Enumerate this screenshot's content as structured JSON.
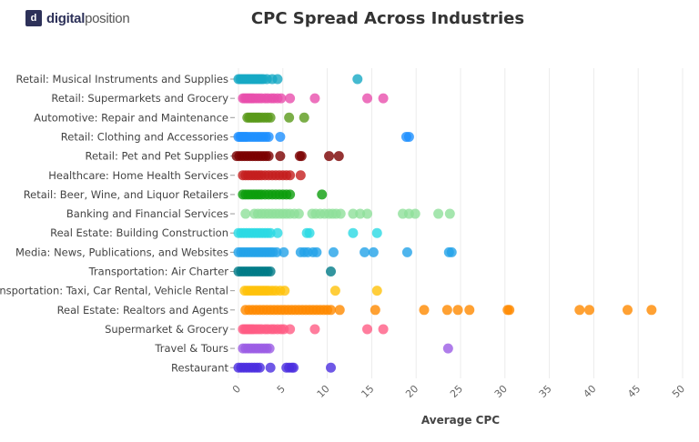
{
  "logo": {
    "brand_bold": "digital",
    "brand_light": "position"
  },
  "chart_data": {
    "type": "scatter",
    "title": "CPC Spread Across Industries",
    "xlabel": "Average CPC",
    "ylabel": "",
    "xlim": [
      0,
      50
    ],
    "xticks": [
      0,
      5,
      10,
      15,
      20,
      25,
      30,
      35,
      40,
      45,
      50
    ],
    "grid": "vertical",
    "legend": "none",
    "series": [
      {
        "name": "Retail: Musical Instruments and Supplies",
        "color": "#17a9c4",
        "values": [
          0,
          0.2,
          0.4,
          0.6,
          0.8,
          1,
          1.2,
          1.4,
          1.6,
          1.8,
          2,
          2.2,
          2.4,
          2.6,
          2.8,
          3.2,
          3.8,
          4.4,
          13.4
        ]
      },
      {
        "name": "Retail: Supermarkets and Grocery",
        "color": "#e84fad",
        "values": [
          0.5,
          0.7,
          0.9,
          1.1,
          1.3,
          1.5,
          1.7,
          2,
          2.3,
          2.6,
          3,
          3.3,
          3.7,
          4,
          4.4,
          4.8,
          5.8,
          8.6,
          14.5,
          16.3
        ]
      },
      {
        "name": "Automotive: Repair and Maintenance",
        "color": "#5a9a1a",
        "values": [
          1,
          1.2,
          1.4,
          1.6,
          1.8,
          2,
          2.2,
          2.4,
          2.7,
          3,
          3.3,
          3.6,
          5.7,
          7.4
        ]
      },
      {
        "name": "Retail: Clothing and Accessories",
        "color": "#1e90ff",
        "values": [
          0,
          0.2,
          0.4,
          0.6,
          0.8,
          1,
          1.3,
          1.6,
          1.9,
          2.2,
          2.5,
          2.8,
          3.1,
          3.4,
          4.7,
          18.9,
          19.2
        ]
      },
      {
        "name": "Retail: Pet and Pet Supplies",
        "color": "#7a0000",
        "values": [
          -0.2,
          0.1,
          0.4,
          0.7,
          1,
          1.3,
          1.6,
          1.9,
          2.2,
          2.5,
          2.8,
          3.1,
          3.4,
          4.7,
          6.9,
          7.1,
          10.2,
          11.3
        ]
      },
      {
        "name": "Healthcare: Home Health Services",
        "color": "#c41e1e",
        "values": [
          0.5,
          0.8,
          1.1,
          1.4,
          1.7,
          2,
          2.3,
          2.6,
          3,
          3.4,
          3.8,
          4.2,
          4.6,
          5,
          5.4,
          5.8,
          7
        ]
      },
      {
        "name": "Retail: Beer, Wine, and Liquor Retailers",
        "color": "#0d9e0d",
        "values": [
          0.5,
          0.8,
          1.1,
          1.4,
          1.7,
          2,
          2.3,
          2.6,
          3,
          3.4,
          3.8,
          4.2,
          4.6,
          5,
          5.4,
          5.8,
          9.4
        ]
      },
      {
        "name": "Banking and Financial Services",
        "color": "#8ee09a",
        "values": [
          0.8,
          1.8,
          2.2,
          2.6,
          3,
          3.4,
          3.8,
          4.2,
          4.6,
          5,
          5.4,
          5.8,
          6.3,
          6.8,
          8.3,
          8.7,
          9.2,
          9.7,
          10.2,
          10.6,
          11,
          11.5,
          12.9,
          13.7,
          14.5,
          18.5,
          19.2,
          19.9,
          22.5,
          23.8
        ]
      },
      {
        "name": "Real Estate: Building Construction",
        "color": "#2bd9e3",
        "values": [
          0,
          0.3,
          0.6,
          0.9,
          1.2,
          1.5,
          1.8,
          2.1,
          2.4,
          2.7,
          3,
          3.3,
          3.6,
          4.4,
          7.7,
          8,
          12.9,
          15.6
        ]
      },
      {
        "name": "Media: News, Publications, and Websites",
        "color": "#23a2e8",
        "values": [
          0,
          0.3,
          0.6,
          0.9,
          1.2,
          1.5,
          1.8,
          2.1,
          2.4,
          2.7,
          3,
          3.3,
          3.6,
          3.9,
          4.3,
          5.1,
          7,
          7.4,
          7.8,
          8.4,
          8.8,
          10.7,
          14.2,
          15.2,
          19,
          23.7,
          24
        ]
      },
      {
        "name": "Transportation: Air Charter",
        "color": "#007a87",
        "values": [
          0,
          0.3,
          0.6,
          0.9,
          1.2,
          1.5,
          1.8,
          2.1,
          2.4,
          2.7,
          3,
          3.3,
          3.6,
          10.4
        ]
      },
      {
        "name": "Transportation: Taxi, Car Rental, Vehicle Rental",
        "color": "#ffc20a",
        "values": [
          0.7,
          1,
          1.3,
          1.6,
          1.9,
          2.2,
          2.5,
          2.8,
          3.1,
          3.4,
          3.8,
          4.2,
          4.7,
          5.2,
          10.9,
          15.6
        ]
      },
      {
        "name": "Real Estate: Realtors and Agents",
        "color": "#ff8a00",
        "values": [
          0.8,
          1.2,
          1.6,
          2,
          2.4,
          2.8,
          3.2,
          3.6,
          4,
          4.4,
          4.8,
          5.2,
          5.6,
          6,
          6.4,
          6.8,
          7.2,
          7.6,
          8,
          8.4,
          8.8,
          9.2,
          9.6,
          10,
          10.4,
          11.4,
          15.4,
          20.9,
          23.5,
          24.7,
          26,
          30.3,
          30.5,
          38.4,
          39.5,
          43.8,
          46.5
        ]
      },
      {
        "name": "Supermarket & Grocery",
        "color": "#ff5c85",
        "values": [
          0.5,
          0.7,
          0.9,
          1.1,
          1.3,
          1.5,
          1.7,
          2,
          2.3,
          2.6,
          3,
          3.3,
          3.7,
          4,
          4.4,
          4.8,
          5.1,
          5.8,
          8.6,
          14.5,
          16.3
        ]
      },
      {
        "name": "Travel & Tours",
        "color": "#9b5de5",
        "values": [
          0.5,
          0.8,
          1.1,
          1.4,
          1.7,
          2,
          2.3,
          2.6,
          2.9,
          3.2,
          3.5,
          23.6
        ]
      },
      {
        "name": "Restaurant",
        "color": "#4b2ee0",
        "values": [
          0,
          0.3,
          0.6,
          0.9,
          1.2,
          1.5,
          1.8,
          2.1,
          2.4,
          3.6,
          5.4,
          5.7,
          6,
          6.2,
          10.4
        ]
      }
    ]
  }
}
